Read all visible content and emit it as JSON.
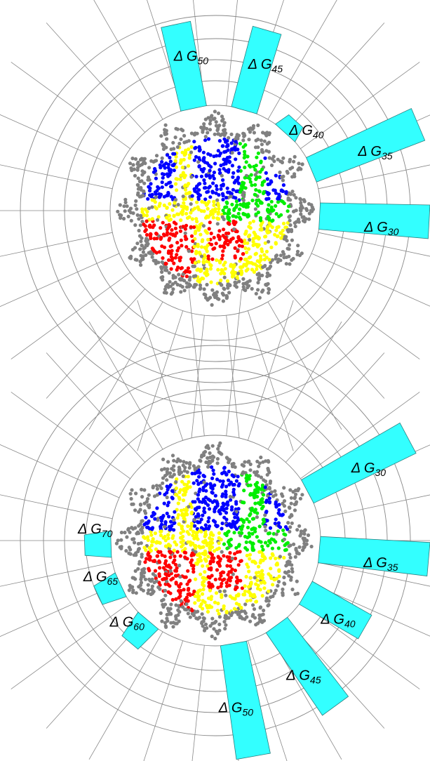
{
  "chart_data": [
    {
      "type": "radial-bar",
      "categories": [
        "Δ G30",
        "Δ G35",
        "Δ G40",
        "Δ G45",
        "Δ G50"
      ],
      "angles": [
        -3,
        23,
        48,
        74,
        102
      ],
      "values": [
        306,
        315,
        172,
        268,
        272
      ],
      "color": "#33ffff",
      "rlim": [
        150,
        320
      ],
      "rticks": [
        150,
        185,
        215,
        245,
        278
      ],
      "grid": true
    },
    {
      "type": "radial-bar",
      "categories": [
        "Δ G30",
        "Δ G35",
        "Δ G40",
        "Δ G45",
        "Δ G50",
        "Δ G60",
        "Δ G65",
        "Δ G70"
      ],
      "angles": [
        28,
        -5,
        -30,
        -54,
        -80,
        -130,
        -155,
        -178
      ],
      "values": [
        312,
        306,
        247,
        292,
        313,
        190,
        185,
        187
      ],
      "color": "#33ffff",
      "rlim": [
        150,
        320
      ],
      "rticks": [
        150,
        185,
        215,
        245,
        278
      ],
      "grid": true
    }
  ]
}
